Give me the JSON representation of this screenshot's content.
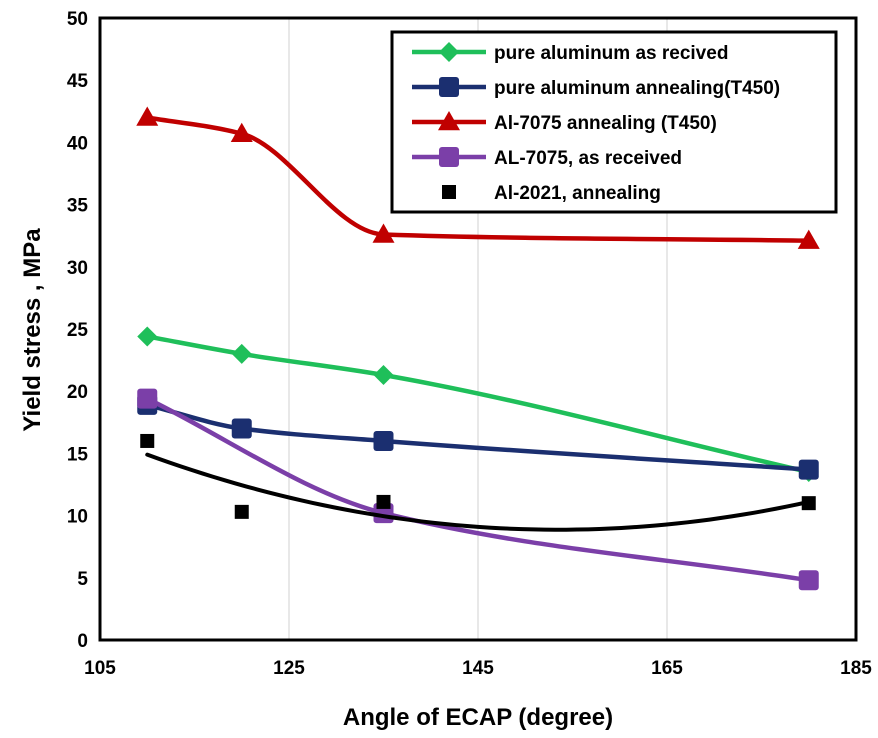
{
  "chart_data": {
    "type": "line",
    "xlabel": "Angle of ECAP (degree)",
    "ylabel": "Yield stress , MPa",
    "xlim": [
      105,
      185
    ],
    "ylim": [
      0,
      50
    ],
    "xticks": [
      105,
      125,
      145,
      165,
      185
    ],
    "yticks": [
      0,
      5,
      10,
      15,
      20,
      25,
      30,
      35,
      40,
      45,
      50
    ],
    "grid": "vertical",
    "legend_position": "top-right",
    "series": [
      {
        "name": "pure aluminum as recived",
        "color": "#1fbf5a",
        "marker": "diamond",
        "style": "smooth-line",
        "x": [
          110,
          120,
          135,
          180
        ],
        "y": [
          24.4,
          23.0,
          21.3,
          13.5
        ]
      },
      {
        "name": "pure aluminum annealing(T450)",
        "color": "#1b2f70",
        "marker": "square",
        "style": "smooth-line",
        "x": [
          110,
          120,
          135,
          180
        ],
        "y": [
          18.9,
          17.0,
          16.0,
          13.7
        ]
      },
      {
        "name": "Al-7075 annealing (T450)",
        "color": "#c00000",
        "marker": "triangle",
        "style": "smooth-line",
        "x": [
          110,
          120,
          135,
          180
        ],
        "y": [
          42.0,
          40.7,
          32.6,
          32.1
        ]
      },
      {
        "name": "AL-7075, as received",
        "color": "#7b3fa8",
        "marker": "square",
        "style": "smooth-line",
        "x": [
          110,
          135,
          180
        ],
        "y": [
          19.4,
          10.2,
          4.8
        ]
      },
      {
        "name": "Al-2021, annealing",
        "color": "#000000",
        "marker": "small-square",
        "style": "markers-with-trend",
        "x": [
          110,
          120,
          135,
          180
        ],
        "y": [
          16.0,
          10.3,
          11.1,
          11.0
        ]
      }
    ]
  }
}
